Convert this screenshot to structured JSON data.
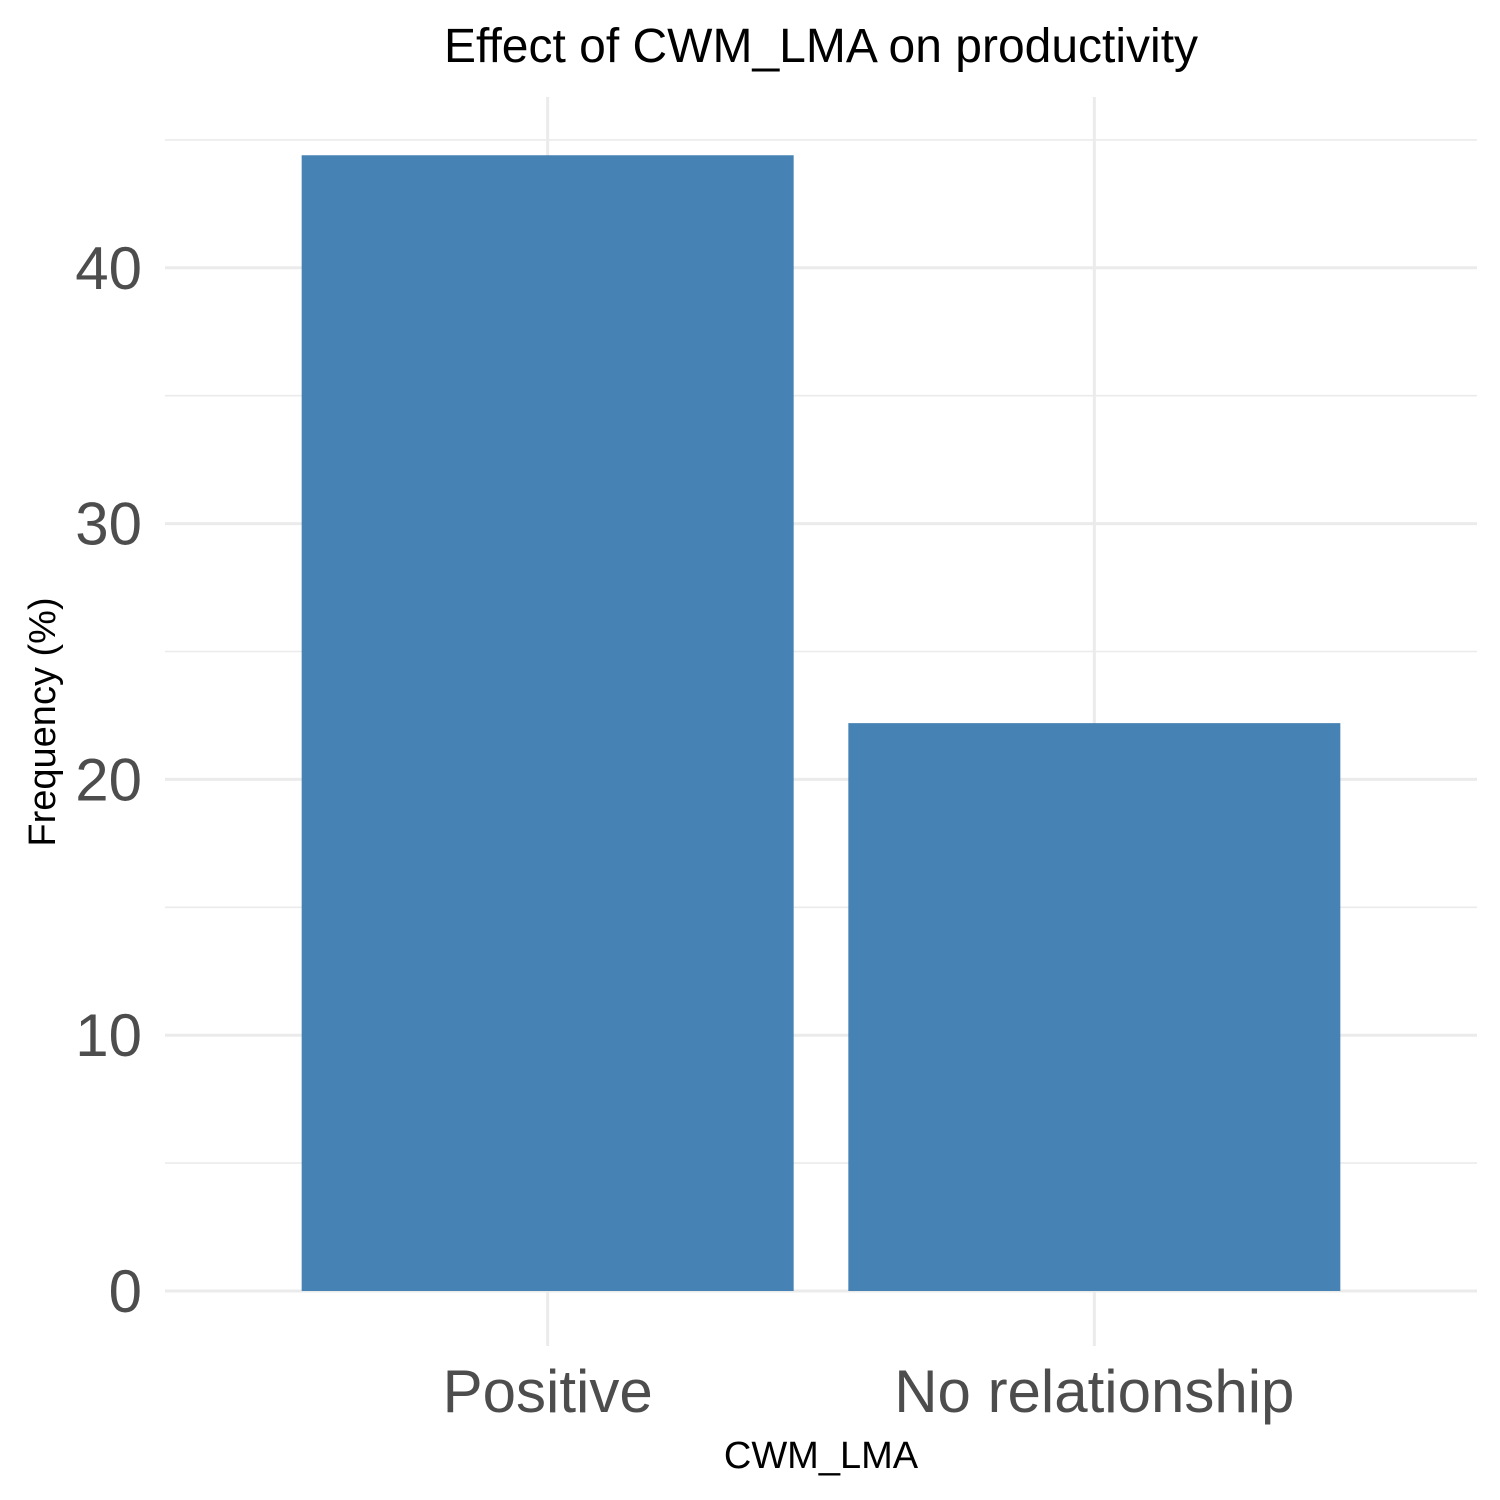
{
  "chart_data": {
    "type": "bar",
    "title": "Effect of CWM_LMA on productivity",
    "xlabel": "CWM_LMA",
    "ylabel": "Frequency (%)",
    "categories": [
      "Positive",
      "No relationship"
    ],
    "values": [
      44.4,
      22.2
    ],
    "ylim": [
      0,
      45
    ],
    "yticks": [
      0,
      10,
      20,
      30,
      40
    ],
    "ytick_labels": [
      "0",
      "10",
      "20",
      "30",
      "40"
    ],
    "grid": true,
    "legend": "none",
    "colors": {
      "bar": "#4682b4",
      "grid": "#ebebeb",
      "tick_text": "#4d4d4d",
      "title_text": "#000000"
    }
  }
}
